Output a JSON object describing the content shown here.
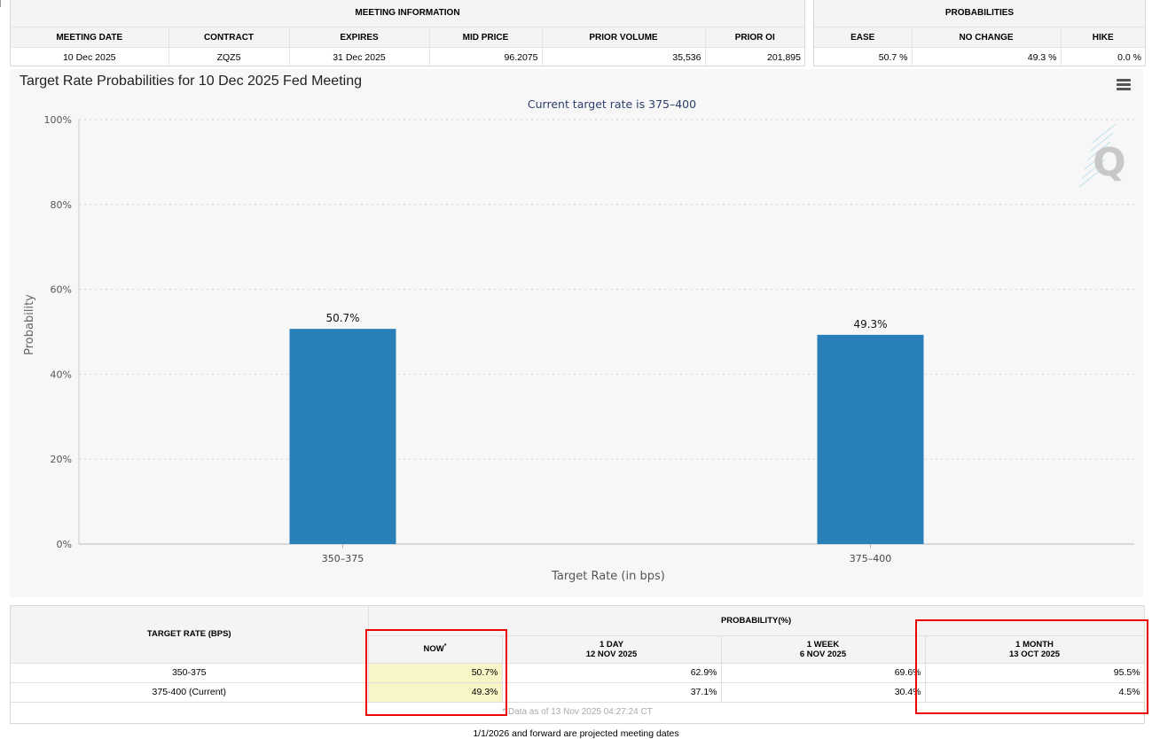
{
  "meeting_info": {
    "title": "MEETING INFORMATION",
    "headers": [
      "MEETING DATE",
      "CONTRACT",
      "EXPIRES",
      "MID PRICE",
      "PRIOR VOLUME",
      "PRIOR OI"
    ],
    "row": [
      "10 Dec 2025",
      "ZQZ5",
      "31 Dec 2025",
      "96.2075",
      "35,536",
      "201,895"
    ]
  },
  "probabilities": {
    "title": "PROBABILITIES",
    "headers": [
      "EASE",
      "NO CHANGE",
      "HIKE"
    ],
    "row": [
      "50.7 %",
      "49.3 %",
      "0.0 %"
    ]
  },
  "chart_data": {
    "type": "bar",
    "title": "Target Rate Probabilities for 10 Dec 2025 Fed Meeting",
    "subtitle": "Current target rate is 375–400",
    "categories": [
      "350–375",
      "375–400"
    ],
    "values": [
      50.7,
      49.3
    ],
    "data_labels": [
      "50.7%",
      "49.3%"
    ],
    "xlabel": "Target Rate (in bps)",
    "ylabel": "Probability",
    "ylim": [
      0,
      100
    ],
    "yticks": [
      0,
      20,
      40,
      60,
      80,
      100
    ],
    "ytick_labels": [
      "0%",
      "20%",
      "40%",
      "60%",
      "80%",
      "100%"
    ],
    "bar_color": "#2980b9",
    "grid": true,
    "watermark": "Q"
  },
  "prob_table": {
    "col_target": "TARGET RATE (BPS)",
    "group_title": "PROBABILITY(%)",
    "col_now": "NOW",
    "col_now_mark": "*",
    "col_1day": "1 DAY",
    "col_1day_date": "12 NOV 2025",
    "col_1week": "1 WEEK",
    "col_1week_date": "6 NOV 2025",
    "col_1month": "1 MONTH",
    "col_1month_date": "13 OCT 2025",
    "rows": [
      {
        "rate": "350-375",
        "now": "50.7%",
        "day": "62.9%",
        "week": "69.6%",
        "month": "95.5%"
      },
      {
        "rate": "375-400 (Current)",
        "now": "49.3%",
        "day": "37.1%",
        "week": "30.4%",
        "month": "4.5%"
      }
    ],
    "footnote": "* Data as of 13 Nov 2025 04:27:24 CT"
  },
  "footer_note": "1/1/2026 and forward are projected meeting dates",
  "colors": {
    "highlight": "#e00000",
    "now_bg": "#f8f6c7"
  }
}
